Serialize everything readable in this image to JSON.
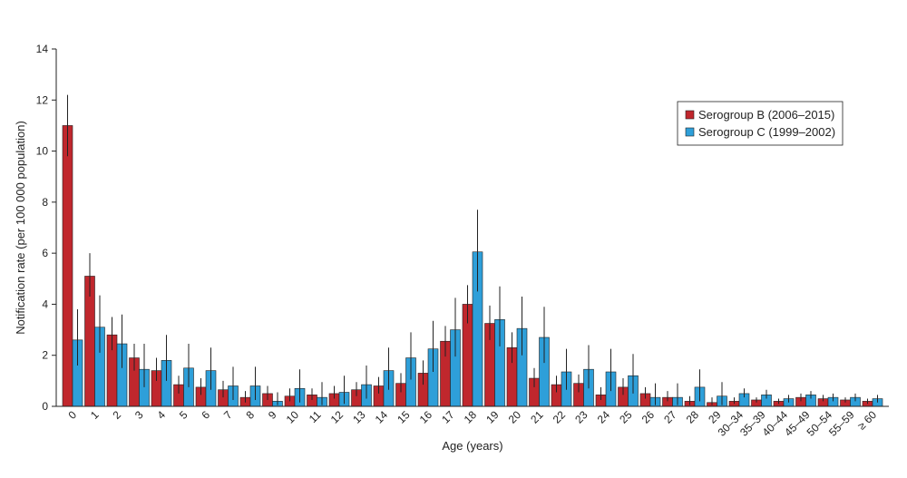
{
  "chart_data": {
    "type": "bar",
    "xlabel": "Age (years)",
    "ylabel": "Notification rate (per 100 000 population)",
    "ylim": [
      0,
      14
    ],
    "yticks": [
      0,
      2,
      4,
      6,
      8,
      10,
      12,
      14
    ],
    "grid": false,
    "legend_position": "top-right",
    "categories": [
      "0",
      "1",
      "2",
      "3",
      "4",
      "5",
      "6",
      "7",
      "8",
      "9",
      "10",
      "11",
      "12",
      "13",
      "14",
      "15",
      "16",
      "17",
      "18",
      "19",
      "20",
      "21",
      "22",
      "23",
      "24",
      "25",
      "26",
      "27",
      "28",
      "29",
      "30–34",
      "35–39",
      "40–44",
      "45–49",
      "50–54",
      "55–59",
      "≥ 60"
    ],
    "series": [
      {
        "name": "Serogroup B (2006–2015)",
        "color": "#c0272d",
        "values": [
          11.0,
          5.1,
          2.8,
          1.9,
          1.4,
          0.85,
          0.75,
          0.65,
          0.35,
          0.5,
          0.4,
          0.45,
          0.5,
          0.65,
          0.8,
          0.9,
          1.3,
          2.55,
          4.0,
          3.25,
          2.3,
          1.1,
          0.85,
          0.9,
          0.45,
          0.75,
          0.5,
          0.35,
          0.2,
          0.15,
          0.2,
          0.25,
          0.2,
          0.35,
          0.3,
          0.25,
          0.2
        ],
        "error_low": [
          9.8,
          4.3,
          2.2,
          1.4,
          1.0,
          0.5,
          0.45,
          0.35,
          0.15,
          0.25,
          0.2,
          0.25,
          0.3,
          0.4,
          0.5,
          0.55,
          0.85,
          1.95,
          3.25,
          2.6,
          1.7,
          0.75,
          0.55,
          0.55,
          0.25,
          0.45,
          0.3,
          0.2,
          0.05,
          0.05,
          0.1,
          0.15,
          0.1,
          0.2,
          0.2,
          0.15,
          0.1
        ],
        "error_high": [
          12.2,
          6.0,
          3.5,
          2.45,
          1.9,
          1.2,
          1.1,
          1.0,
          0.6,
          0.8,
          0.7,
          0.7,
          0.8,
          0.95,
          1.15,
          1.3,
          1.8,
          3.15,
          4.75,
          3.95,
          2.9,
          1.5,
          1.2,
          1.25,
          0.75,
          1.1,
          0.75,
          0.6,
          0.4,
          0.35,
          0.35,
          0.35,
          0.3,
          0.5,
          0.45,
          0.35,
          0.3
        ]
      },
      {
        "name": "Serogroup C (1999–2002)",
        "color": "#2e9fd9",
        "values": [
          2.6,
          3.1,
          2.45,
          1.45,
          1.8,
          1.5,
          1.4,
          0.8,
          0.8,
          0.2,
          0.7,
          0.35,
          0.55,
          0.85,
          1.4,
          1.9,
          2.25,
          3.0,
          6.05,
          3.4,
          3.05,
          2.7,
          1.35,
          1.45,
          1.35,
          1.2,
          0.35,
          0.35,
          0.75,
          0.4,
          0.5,
          0.45,
          0.3,
          0.45,
          0.35,
          0.35,
          0.3
        ],
        "error_low": [
          1.6,
          2.1,
          1.5,
          0.75,
          1.0,
          0.75,
          0.65,
          0.25,
          0.25,
          0.05,
          0.15,
          0.05,
          0.1,
          0.3,
          0.65,
          1.05,
          1.35,
          1.95,
          4.5,
          2.35,
          2.0,
          1.7,
          0.65,
          0.7,
          0.6,
          0.5,
          0.05,
          0.05,
          0.2,
          0.05,
          0.35,
          0.3,
          0.15,
          0.3,
          0.2,
          0.2,
          0.15
        ],
        "error_high": [
          3.8,
          4.35,
          3.6,
          2.45,
          2.8,
          2.45,
          2.3,
          1.55,
          1.55,
          0.55,
          1.45,
          0.95,
          1.2,
          1.6,
          2.3,
          2.9,
          3.35,
          4.25,
          7.7,
          4.7,
          4.3,
          3.9,
          2.25,
          2.4,
          2.25,
          2.05,
          0.9,
          0.9,
          1.45,
          0.95,
          0.7,
          0.65,
          0.45,
          0.6,
          0.5,
          0.5,
          0.45
        ]
      }
    ]
  }
}
